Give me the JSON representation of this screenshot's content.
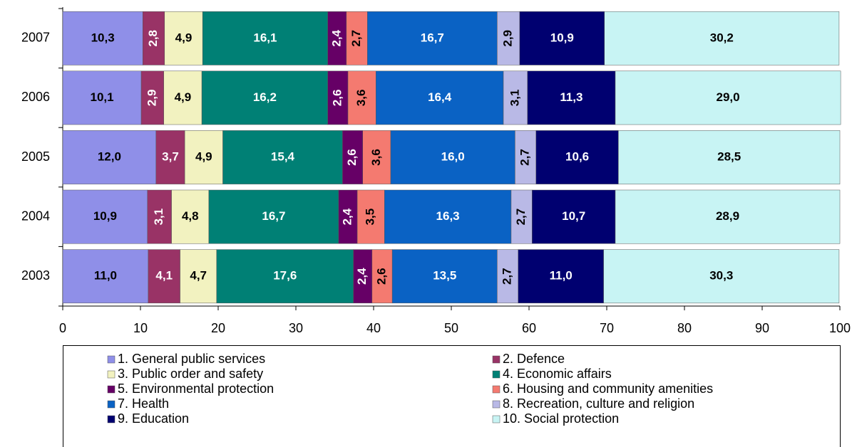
{
  "chart_data": {
    "type": "stacked-barh",
    "categories": [
      "2007",
      "2006",
      "2005",
      "2004",
      "2003"
    ],
    "series": [
      {
        "name": "1. General public services",
        "color": "#8f8fe8",
        "values": [
          10.3,
          10.1,
          12.0,
          10.9,
          11.0
        ],
        "value_labels": [
          "10,3",
          "10,1",
          "12,0",
          "10,9",
          "11,0"
        ]
      },
      {
        "name": "2. Defence",
        "color": "#993366",
        "values": [
          2.8,
          2.9,
          3.7,
          3.1,
          4.1
        ],
        "value_labels": [
          "2,8",
          "2,9",
          "3,7",
          "3,1",
          "4,1"
        ]
      },
      {
        "name": "3. Public order and safety",
        "color": "#f2f2c0",
        "values": [
          4.9,
          4.9,
          4.9,
          4.8,
          4.7
        ],
        "value_labels": [
          "4,9",
          "4,9",
          "4,9",
          "4,8",
          "4,7"
        ]
      },
      {
        "name": "4. Economic affairs",
        "color": "#008075",
        "values": [
          16.1,
          16.2,
          15.4,
          16.7,
          17.6
        ],
        "value_labels": [
          "16,1",
          "16,2",
          "15,4",
          "16,7",
          "17,6"
        ]
      },
      {
        "name": "5. Environmental protection",
        "color": "#660066",
        "values": [
          2.4,
          2.6,
          2.6,
          2.4,
          2.4
        ],
        "value_labels": [
          "2,4",
          "2,6",
          "2,6",
          "2,4",
          "2,4"
        ]
      },
      {
        "name": "6. Housing and community amenities",
        "color": "#f47a70",
        "values": [
          2.7,
          3.6,
          3.6,
          3.5,
          2.6
        ],
        "value_labels": [
          "2,7",
          "3,6",
          "3,6",
          "3,5",
          "2,6"
        ]
      },
      {
        "name": "7. Health",
        "color": "#0a62c4",
        "values": [
          16.7,
          16.4,
          16.0,
          16.3,
          13.5
        ],
        "value_labels": [
          "16,7",
          "16,4",
          "16,0",
          "16,3",
          "13,5"
        ]
      },
      {
        "name": "8. Recreation, culture and religion",
        "color": "#b9b9e6",
        "values": [
          2.9,
          3.1,
          2.7,
          2.7,
          2.7
        ],
        "value_labels": [
          "2,9",
          "3,1",
          "2,7",
          "2,7",
          "2,7"
        ]
      },
      {
        "name": "9. Education",
        "color": "#000070",
        "values": [
          10.9,
          11.3,
          10.6,
          10.7,
          11.0
        ],
        "value_labels": [
          "10,9",
          "11,3",
          "10,6",
          "10,7",
          "11,0"
        ]
      },
      {
        "name": "10. Social protection",
        "color": "#c8f4f4",
        "values": [
          30.2,
          29.0,
          28.5,
          28.9,
          30.3
        ],
        "value_labels": [
          "30,2",
          "29,0",
          "28,5",
          "28,9",
          "30,3"
        ]
      }
    ],
    "xlim": [
      0,
      100
    ],
    "xticks": [
      0,
      10,
      20,
      30,
      40,
      50,
      60,
      70,
      80,
      90,
      100
    ]
  }
}
